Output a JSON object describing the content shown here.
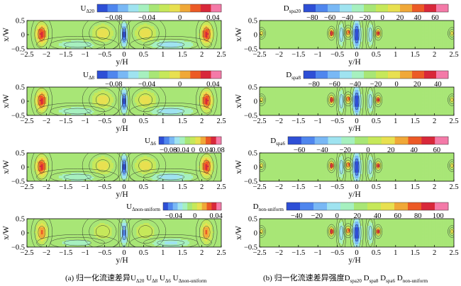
{
  "chart_data": [
    {
      "type": "heatmap",
      "label_main": "U",
      "label_sub": "Δ20",
      "colorbar_ticks": [
        -0.08,
        -0.04,
        0,
        0.04
      ],
      "colorbar_range": [
        -0.1,
        0.05
      ],
      "xlabel": "y/H",
      "ylabel": "x/W",
      "xticks": [
        -2.5,
        -2,
        -1.5,
        -1,
        -0.5,
        0,
        0.5,
        1,
        1.5,
        2,
        2.5
      ],
      "yticks": [
        0.5,
        0,
        -0.5
      ],
      "xlim": [
        -2.5,
        2.5
      ],
      "ylim": [
        -0.5,
        0.5
      ]
    },
    {
      "type": "heatmap",
      "label_main": "D",
      "label_sub": "spa20",
      "colorbar_ticks": [
        -80,
        -60,
        -40,
        -20,
        0,
        20,
        40,
        60
      ],
      "colorbar_range": [
        -90,
        75
      ],
      "xlabel": "y/H",
      "ylabel": "x/W",
      "xticks": [
        -2.5,
        -2,
        -1.5,
        -1,
        -0.5,
        0,
        0.5,
        1,
        1.5,
        2,
        2.5
      ],
      "yticks": [
        0.5,
        0,
        -0.5
      ],
      "xlim": [
        -2.5,
        2.5
      ],
      "ylim": [
        -0.5,
        0.5
      ]
    },
    {
      "type": "heatmap",
      "label_main": "U",
      "label_sub": "Δ8",
      "colorbar_ticks": [
        -0.08,
        -0.04,
        0,
        0.04
      ],
      "colorbar_range": [
        -0.1,
        0.05
      ],
      "xlabel": "y/H",
      "ylabel": "x/W",
      "xticks": [
        -2.5,
        -2,
        -1.5,
        -1,
        -0.5,
        0,
        0.5,
        1,
        1.5,
        2,
        2.5
      ],
      "yticks": [
        0.5,
        0,
        -0.5
      ],
      "xlim": [
        -2.5,
        2.5
      ],
      "ylim": [
        -0.5,
        0.5
      ]
    },
    {
      "type": "heatmap",
      "label_main": "D",
      "label_sub": "spa8",
      "colorbar_ticks": [
        -80,
        -60,
        -40,
        -20,
        0,
        20,
        40
      ],
      "colorbar_range": [
        -90,
        50
      ],
      "xlabel": "y/H",
      "ylabel": "x/W",
      "xticks": [
        -2.5,
        -2,
        -1.5,
        -1,
        -0.5,
        0,
        0.5,
        1,
        1.5,
        2,
        2.5
      ],
      "yticks": [
        0.5,
        0,
        -0.5
      ],
      "xlim": [
        -2.5,
        2.5
      ],
      "ylim": [
        -0.5,
        0.5
      ]
    },
    {
      "type": "heatmap",
      "label_main": "U",
      "label_sub": "Δ6",
      "colorbar_ticks": [
        -0.08,
        -0.04,
        0,
        0.04,
        0.08
      ],
      "colorbar_range": [
        -0.11,
        0.09
      ],
      "xlabel": "y/H",
      "ylabel": "x/W",
      "xticks": [
        -2.5,
        -2,
        -1.5,
        -1,
        -0.5,
        0,
        0.5,
        1,
        1.5,
        2,
        2.5
      ],
      "yticks": [
        0.5,
        0,
        -0.5
      ],
      "xlim": [
        -2.5,
        2.5
      ],
      "ylim": [
        -0.5,
        0.5
      ]
    },
    {
      "type": "heatmap",
      "label_main": "D",
      "label_sub": "spa6",
      "colorbar_ticks": [
        -60,
        -40,
        -20,
        0,
        20,
        40,
        60
      ],
      "colorbar_range": [
        -70,
        70
      ],
      "xlabel": "y/H",
      "ylabel": "x/W",
      "xticks": [
        -2.5,
        -2,
        -1.5,
        -1,
        -0.5,
        0,
        0.5,
        1,
        1.5,
        2,
        2.5
      ],
      "yticks": [
        0.5,
        0,
        -0.5
      ],
      "xlim": [
        -2.5,
        2.5
      ],
      "ylim": [
        -0.5,
        0.5
      ]
    },
    {
      "type": "heatmap",
      "label_main": "U",
      "label_sub": "Δnon-uniform",
      "colorbar_ticks": [
        -0.04,
        0,
        0.04
      ],
      "colorbar_range": [
        -0.06,
        0.05
      ],
      "xlabel": "y/H",
      "ylabel": "x/W",
      "xticks": [
        -2.5,
        -2,
        -1.5,
        -1,
        -0.5,
        0,
        0.5,
        1,
        1.5,
        2,
        2.5
      ],
      "yticks": [
        0.5,
        0,
        -0.5
      ],
      "xlim": [
        -2.5,
        2.5
      ],
      "ylim": [
        -0.5,
        0.5
      ]
    },
    {
      "type": "heatmap",
      "label_main": "D",
      "label_sub": "non-uniform",
      "colorbar_ticks": [
        -40,
        -20,
        0,
        20,
        40,
        60,
        80,
        100
      ],
      "colorbar_range": [
        -50,
        110
      ],
      "xlabel": "y/H",
      "ylabel": "x/W",
      "xticks": [
        -2.5,
        -2,
        -1.5,
        -1,
        -0.5,
        0,
        0.5,
        1,
        1.5,
        2,
        2.5
      ],
      "yticks": [
        0.5,
        0,
        -0.5
      ],
      "xlim": [
        -2.5,
        2.5
      ],
      "ylim": [
        -0.5,
        0.5
      ]
    }
  ],
  "palette": [
    "#2e4fd6",
    "#4f86ee",
    "#79b8f5",
    "#9fe3f0",
    "#a6f0bf",
    "#a8e676",
    "#c6e85a",
    "#e8e050",
    "#f0a838",
    "#ec5a26",
    "#d8283a",
    "#f47aa8"
  ],
  "captions": {
    "left": {
      "prefix": "(a) 归一化流速差异",
      "items": [
        [
          "U",
          "Δ20"
        ],
        [
          "U",
          "Δ8"
        ],
        [
          "U",
          "Δ6"
        ],
        [
          "U",
          "Δnon-uniform"
        ]
      ]
    },
    "right": {
      "prefix": "(b) 归一化流速差异强度",
      "items": [
        [
          "D",
          "spa20"
        ],
        [
          "D",
          "spa8"
        ],
        [
          "D",
          "spa6"
        ],
        [
          "D",
          "non-uniform"
        ]
      ]
    }
  }
}
